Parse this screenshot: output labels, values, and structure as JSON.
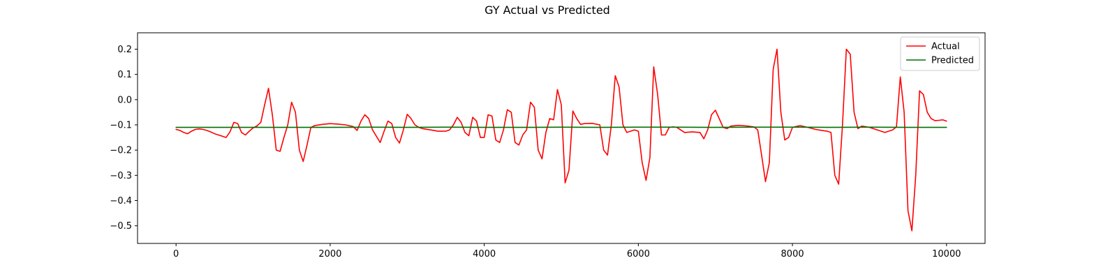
{
  "chart_data": {
    "type": "line",
    "title": "GY Actual vs Predicted",
    "xlabel": "",
    "ylabel": "",
    "xlim": [
      -500,
      10500
    ],
    "ylim": [
      -0.57,
      0.265
    ],
    "xticks": [
      0,
      2000,
      4000,
      6000,
      8000,
      10000
    ],
    "xtick_labels": [
      "0",
      "2000",
      "4000",
      "6000",
      "8000",
      "10000"
    ],
    "yticks": [
      0.2,
      0.1,
      0.0,
      -0.1,
      -0.2,
      -0.3,
      -0.4,
      -0.5
    ],
    "ytick_labels": [
      "0.2",
      "0.1",
      "0.0",
      "−0.1",
      "−0.2",
      "−0.3",
      "−0.4",
      "−0.5"
    ],
    "grid": false,
    "legend_position": "top-right",
    "series": [
      {
        "name": "Actual",
        "color": "#ff0000",
        "x": [
          0,
          50,
          100,
          150,
          200,
          250,
          300,
          350,
          400,
          450,
          500,
          550,
          600,
          650,
          700,
          750,
          800,
          850,
          900,
          950,
          1000,
          1050,
          1100,
          1150,
          1200,
          1250,
          1300,
          1350,
          1400,
          1450,
          1500,
          1550,
          1600,
          1650,
          1700,
          1750,
          1800,
          1900,
          2000,
          2100,
          2200,
          2300,
          2350,
          2400,
          2450,
          2500,
          2550,
          2600,
          2650,
          2700,
          2750,
          2800,
          2850,
          2900,
          2950,
          3000,
          3050,
          3100,
          3150,
          3200,
          3300,
          3400,
          3500,
          3550,
          3600,
          3650,
          3700,
          3750,
          3800,
          3850,
          3900,
          3950,
          4000,
          4050,
          4100,
          4150,
          4200,
          4250,
          4300,
          4350,
          4400,
          4450,
          4500,
          4550,
          4600,
          4650,
          4700,
          4750,
          4800,
          4850,
          4900,
          4950,
          5000,
          5050,
          5100,
          5150,
          5200,
          5250,
          5300,
          5400,
          5500,
          5550,
          5600,
          5650,
          5700,
          5750,
          5800,
          5850,
          5900,
          5950,
          6000,
          6050,
          6100,
          6150,
          6200,
          6250,
          6300,
          6350,
          6400,
          6450,
          6500,
          6600,
          6700,
          6800,
          6850,
          6900,
          6950,
          7000,
          7050,
          7100,
          7150,
          7200,
          7300,
          7400,
          7500,
          7550,
          7600,
          7650,
          7700,
          7750,
          7800,
          7850,
          7900,
          7950,
          8000,
          8100,
          8200,
          8300,
          8400,
          8450,
          8500,
          8550,
          8600,
          8650,
          8700,
          8750,
          8800,
          8850,
          8900,
          9000,
          9100,
          9200,
          9300,
          9350,
          9400,
          9450,
          9500,
          9550,
          9600,
          9650,
          9700,
          9750,
          9800,
          9850,
          9900,
          9950,
          10000
        ],
        "values": [
          -0.118,
          -0.122,
          -0.13,
          -0.135,
          -0.125,
          -0.118,
          -0.116,
          -0.118,
          -0.122,
          -0.128,
          -0.135,
          -0.14,
          -0.145,
          -0.15,
          -0.128,
          -0.09,
          -0.095,
          -0.13,
          -0.14,
          -0.125,
          -0.112,
          -0.104,
          -0.09,
          -0.02,
          0.045,
          -0.06,
          -0.2,
          -0.205,
          -0.15,
          -0.1,
          -0.01,
          -0.05,
          -0.2,
          -0.245,
          -0.18,
          -0.11,
          -0.103,
          -0.098,
          -0.095,
          -0.097,
          -0.1,
          -0.107,
          -0.122,
          -0.085,
          -0.06,
          -0.075,
          -0.12,
          -0.145,
          -0.17,
          -0.125,
          -0.085,
          -0.095,
          -0.15,
          -0.172,
          -0.12,
          -0.058,
          -0.075,
          -0.1,
          -0.11,
          -0.115,
          -0.12,
          -0.125,
          -0.125,
          -0.12,
          -0.1,
          -0.07,
          -0.09,
          -0.13,
          -0.143,
          -0.07,
          -0.085,
          -0.15,
          -0.15,
          -0.06,
          -0.065,
          -0.16,
          -0.17,
          -0.12,
          -0.04,
          -0.05,
          -0.17,
          -0.18,
          -0.14,
          -0.12,
          -0.01,
          -0.03,
          -0.2,
          -0.235,
          -0.13,
          -0.075,
          -0.08,
          0.04,
          -0.02,
          -0.33,
          -0.28,
          -0.045,
          -0.075,
          -0.098,
          -0.095,
          -0.094,
          -0.1,
          -0.2,
          -0.22,
          -0.1,
          0.095,
          0.05,
          -0.1,
          -0.13,
          -0.125,
          -0.12,
          -0.125,
          -0.25,
          -0.32,
          -0.23,
          0.13,
          0.02,
          -0.14,
          -0.14,
          -0.11,
          -0.108,
          -0.11,
          -0.13,
          -0.128,
          -0.13,
          -0.155,
          -0.12,
          -0.06,
          -0.042,
          -0.075,
          -0.11,
          -0.115,
          -0.105,
          -0.102,
          -0.104,
          -0.108,
          -0.12,
          -0.22,
          -0.325,
          -0.25,
          0.12,
          0.2,
          -0.05,
          -0.16,
          -0.15,
          -0.11,
          -0.103,
          -0.11,
          -0.118,
          -0.123,
          -0.125,
          -0.13,
          -0.3,
          -0.335,
          -0.1,
          0.2,
          0.18,
          -0.05,
          -0.115,
          -0.105,
          -0.11,
          -0.12,
          -0.13,
          -0.12,
          -0.108,
          0.09,
          -0.05,
          -0.44,
          -0.52,
          -0.3,
          0.035,
          0.02,
          -0.05,
          -0.075,
          -0.083,
          -0.082,
          -0.08,
          -0.085
        ]
      },
      {
        "name": "Predicted",
        "color": "#007000",
        "x": [
          0,
          500,
          1000,
          1500,
          2000,
          2500,
          3000,
          3500,
          4000,
          4500,
          5000,
          5500,
          6000,
          6500,
          7000,
          7500,
          8000,
          8500,
          9000,
          9500,
          10000
        ],
        "values": [
          -0.11,
          -0.11,
          -0.11,
          -0.11,
          -0.11,
          -0.109,
          -0.11,
          -0.109,
          -0.11,
          -0.11,
          -0.109,
          -0.11,
          -0.109,
          -0.109,
          -0.11,
          -0.109,
          -0.109,
          -0.11,
          -0.109,
          -0.11,
          -0.11
        ]
      }
    ]
  }
}
